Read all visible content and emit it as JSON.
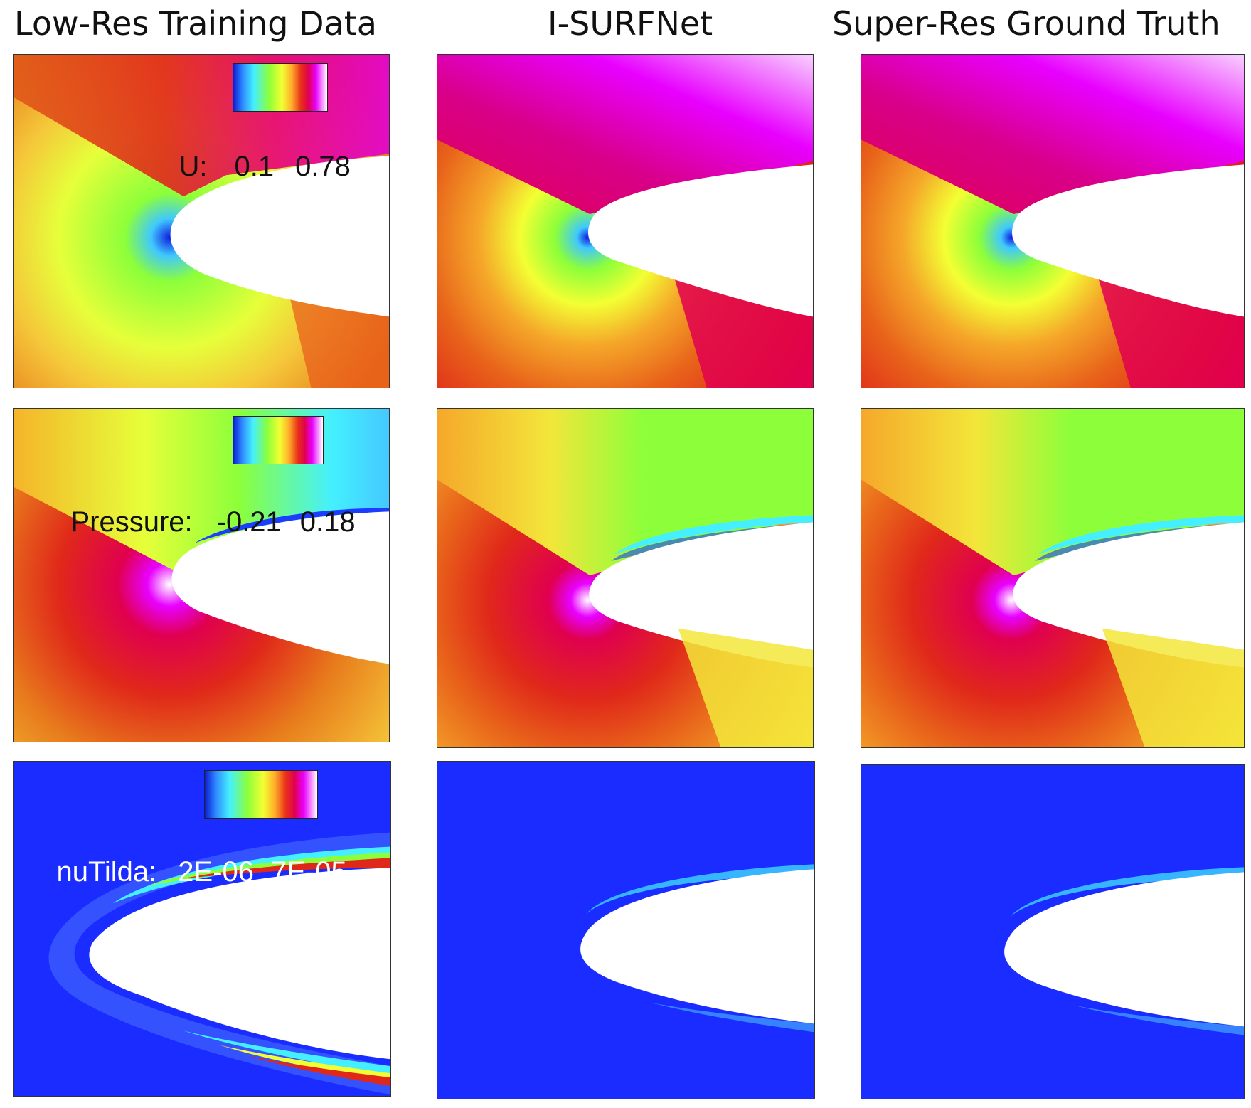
{
  "columns": [
    {
      "title": "Low-Res Training Data"
    },
    {
      "title": "I-SURFNet"
    },
    {
      "title": "Super-Res Ground Truth"
    }
  ],
  "rows": [
    {
      "variable": "U:",
      "min": "0.1",
      "max": "0.78"
    },
    {
      "variable": "Pressure:",
      "min": "-0.21",
      "max": "0.18"
    },
    {
      "variable": "nuTilda:",
      "min": "2E-06",
      "max": "7E-05"
    }
  ],
  "colors": {
    "background_field": "#1a2cff",
    "colormap": [
      "#0b1cd6",
      "#2f8bff",
      "#44f0ff",
      "#8cff3a",
      "#f3ff33",
      "#ffb02a",
      "#e8311a",
      "#e0004f",
      "#e800ff",
      "#ffffff"
    ]
  }
}
